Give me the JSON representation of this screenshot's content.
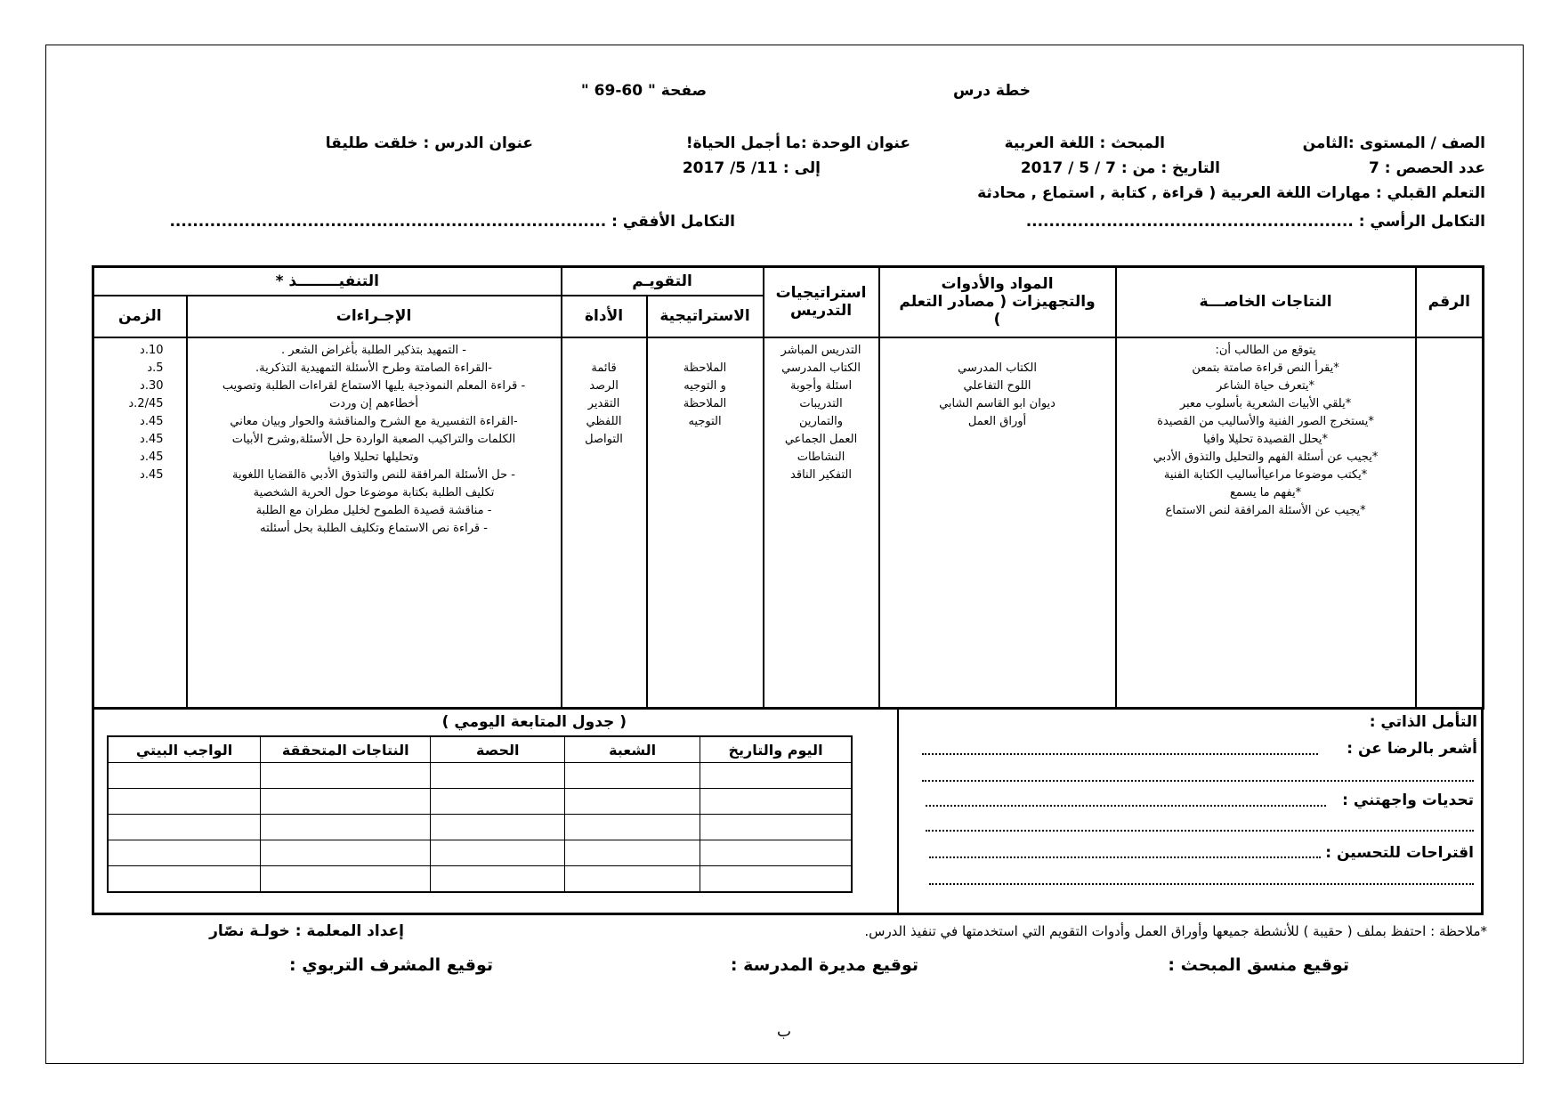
{
  "header": {
    "title": "خطة درس",
    "page": "صفحة \"  60-69  \"",
    "grade": "الصف / المستوى :الثامن",
    "subject": "المبحث : اللغة العربية",
    "unit": "عنوان الوحدة :ما أجمل الحياة!",
    "lesson": "عنوان الدرس : خلقت طليقا",
    "periods": "عدد الحصص : 7",
    "date_from": "التاريخ : من :  7  /  5  /  2017",
    "date_to": "إلى : 11/ 5/ 2017",
    "prior_learning": "التعلم القبلي : مهارات اللغة العربية ( قراءة , كتابة , استماع , محادثة",
    "vertical_integration": "التكامل الرأسي : .........................................................",
    "horizontal_integration": "التكامل الأفقي : ............................................................................"
  },
  "main_table": {
    "headers": {
      "number": "الرقم",
      "outcomes": "النتاجات الخاصـــة",
      "materials": "المواد والأدوات والتجهيزات ( مصادر التعلم )",
      "strategies": "استراتيجيات التدريس",
      "evaluation": "التقويـم",
      "eval_strategy": "الاستراتيجية",
      "eval_tool": "الأداة",
      "execution": "التنفيــــــــذ *",
      "procedures": "الإجـراءات",
      "time": "الزمن"
    },
    "outcomes": [
      "يتوقع من الطالب أن:",
      "*يقرأ النص قراءة صامتة بتمعن",
      "*يتعرف حياة الشاعر",
      "*يلقي الأبيات الشعرية بأسلوب معبر",
      "*يستخرج الصور الفنية والأساليب من القصيدة",
      "*يحلل القصيدة تحليلا وافيا",
      "*يجيب عن أسئلة الفهم والتحليل والتذوق الأدبي",
      "*يكتب موضوعا مراعياأساليب الكتابة الفنية",
      "*يفهم ما يسمع",
      "*يجيب عن الأسئلة المرافقة لنص الاستماع"
    ],
    "materials": [
      "الكتاب المدرسي",
      "اللوح التفاعلي",
      "ديوان ابو القاسم الشابي",
      "أوراق العمل"
    ],
    "strategies": [
      "التدريس المباشر",
      "الكتاب المدرسي",
      "اسئلة وأجوبة",
      "التدريبات",
      "والتمارين",
      "العمل الجماعي",
      "النشاطات",
      "التفكير الناقد"
    ],
    "eval_strategies": [
      "الملاحظة",
      "و التوجيه",
      "الملاحظة",
      "التوجيه"
    ],
    "eval_tools": [
      "قائمة",
      "الرصد",
      "التقدير",
      "اللفظي",
      "التواصل"
    ],
    "procedures": [
      "- التمهيد بتذكير الطلبة بأغراض الشعر .",
      "-القراءة الصامتة وطرح الأسئلة التمهيدية التذكرية.",
      "- قراءة المعلم النموذجية يليها الاستماع لقراءات الطلبة وتصويب",
      "أخطاءهم إن وردت",
      "-القراءة التفسيرية مع الشرح والمناقشة والحوار وبيان معاني",
      "الكلمات والتراكيب الصعبة الواردة حل الأسئلة,وشرح الأبيات",
      "وتحليلها تحليلا وافيا",
      "- حل الأسئلة المرافقة للنص والتذوق الأدبي ةالقضايا اللغوية",
      "تكليف الطلبة بكتابة موضوعا حول الحرية الشخصية",
      "-   مناقشة قصيدة الطموح لخليل مطران مع الطلبة",
      "- قراءة نص الاستماع وتكليف الطلبة بحل أسئلته"
    ],
    "times": [
      "10.د",
      "5.د",
      "30.د",
      "2/45.د",
      "45.د",
      "45.د",
      "45.د",
      "45.د"
    ]
  },
  "followup": {
    "title": "( جدول المتابعة اليومي )",
    "headers": [
      "اليوم والتاريخ",
      "الشعبة",
      "الحصة",
      "النتاجات المتحققة",
      "الواجب البيتي"
    ]
  },
  "reflection": {
    "title": "التأمل الذاتي :",
    "satisfied": "أشعر بالرضا عن  :",
    "challenges": "تحديات واجهتني :",
    "suggestions": "اقتراحات للتحسين :"
  },
  "footer": {
    "note": "*ملاحظة : احتفظ بملف ( حقيبة ) للأنشطة جميعها وأوراق العمل وأدوات التقويم التي استخدمتها في تنفيذ الدرس.",
    "prepared_by": "إعداد المعلمة : خولـة نصّار",
    "coordinator_signature": "توقيع منسق المبحث :",
    "principal_signature": "توقيع مديرة المدرسة :",
    "supervisor_signature": "توقيع المشرف التربوي :",
    "page_letter": "ب"
  }
}
